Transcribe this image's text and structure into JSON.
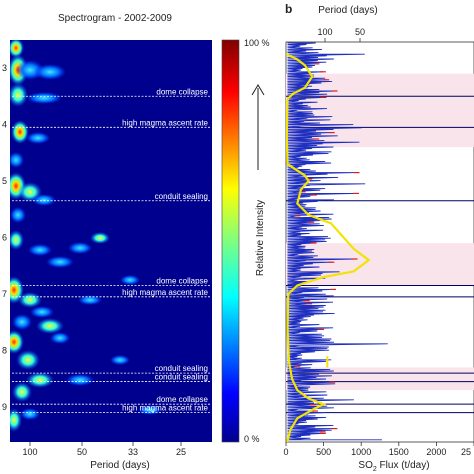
{
  "colors": {
    "background": "#00008f",
    "annotation_text": "#ffffff",
    "annotation_line": "#ffffff",
    "flux_trace": "#1f2fbf",
    "flux_peaks": "#d82020",
    "period_curve": "#f2e400",
    "shade": "#f8e4ea"
  },
  "chart_data": [
    {
      "type": "heatmap",
      "title": "Spectrogram - 2002-2009",
      "xlabel": "Period (days)",
      "ylabel": "",
      "x_ticks": [
        "100",
        "50",
        "33",
        "25"
      ],
      "y_ticks": [
        "3",
        "4",
        "5",
        "6",
        "7",
        "8",
        "9"
      ],
      "colorbar": {
        "label": "Relative Intensity",
        "top_label": "100 %",
        "bottom_label": "0 %",
        "colormap": "jet"
      },
      "annotations": [
        {
          "label": "dome collapse",
          "year": 2003.5
        },
        {
          "label": "high magma ascent rate",
          "year": 2004.05
        },
        {
          "label": "conduit sealing",
          "year": 2005.35
        },
        {
          "label": "dome collapse",
          "year": 2006.85
        },
        {
          "label": "high magma ascent rate",
          "year": 2007.05
        },
        {
          "label": "conduit sealing",
          "year": 2008.4
        },
        {
          "label": "conduit sealing",
          "year": 2008.55
        },
        {
          "label": "dome collapse",
          "year": 2008.95
        },
        {
          "label": "high magma ascent rate",
          "year": 2009.1
        }
      ]
    },
    {
      "type": "line",
      "panel_label": "b",
      "top_axis_label": "Period (days)",
      "top_ticks": [
        "100",
        "50"
      ],
      "xlabel_main": "SO",
      "xlabel_sub": "2",
      "xlabel_rest": " Flux (t/day)",
      "xlim": [
        0,
        2500
      ],
      "x_ticks": [
        "0",
        "500",
        "1000",
        "1500",
        "2000",
        "25"
      ],
      "series": [
        {
          "kind": "flux",
          "color": "#1f2fbf"
        },
        {
          "kind": "period",
          "color": "#f2e400"
        }
      ]
    }
  ]
}
